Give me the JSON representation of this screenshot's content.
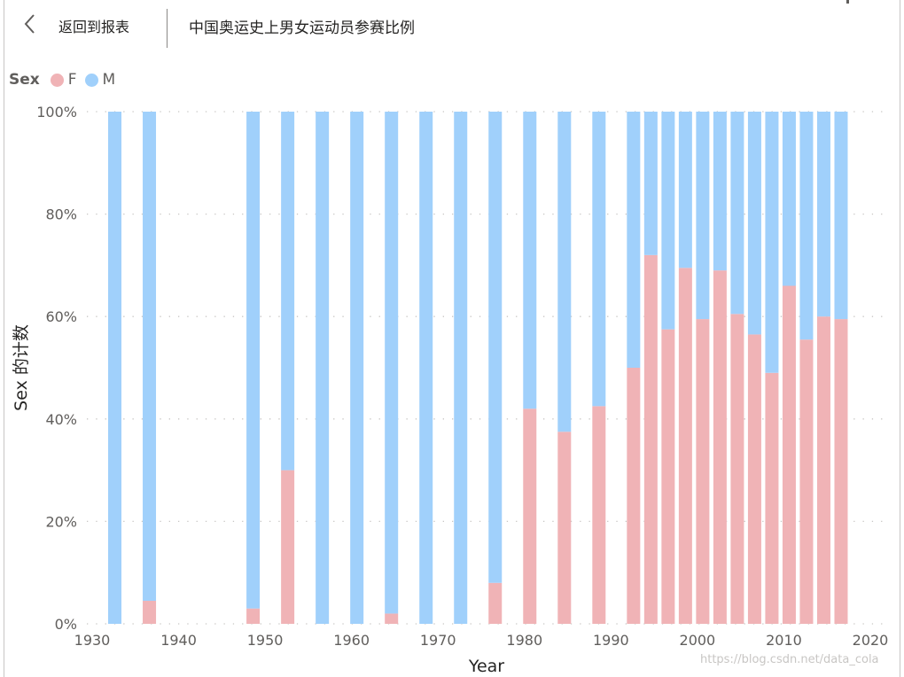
{
  "header": {
    "back_label": "返回到报表",
    "title": "中国奥运史上男女运动员参赛比例"
  },
  "legend": {
    "title": "Sex",
    "items": [
      {
        "label": "F",
        "color": "#f0b3b6"
      },
      {
        "label": "M",
        "color": "#a0d0fb"
      }
    ]
  },
  "watermark": "https://blog.csdn.net/data_cola",
  "chart_data": {
    "type": "bar",
    "stacked": true,
    "percent": true,
    "xlabel": "Year",
    "ylabel": "Sex 的计数",
    "xlim": [
      1930,
      2020
    ],
    "xticks": [
      1930,
      1940,
      1950,
      1960,
      1970,
      1980,
      1990,
      2000,
      2010,
      2020
    ],
    "ylim": [
      0,
      100
    ],
    "yticks": [
      "0%",
      "20%",
      "40%",
      "60%",
      "80%",
      "100%"
    ],
    "grid": true,
    "legend_position": "top-left",
    "categories": [
      1932,
      1936,
      1948,
      1952,
      1956,
      1960,
      1964,
      1968,
      1972,
      1976,
      1980,
      1984,
      1988,
      1992,
      1994,
      1996,
      1998,
      2000,
      2002,
      2004,
      2006,
      2008,
      2010,
      2012,
      2014,
      2016
    ],
    "series": [
      {
        "name": "F",
        "color": "#f0b3b6",
        "values": [
          0,
          4.5,
          3,
          30,
          0,
          0,
          2,
          0,
          0,
          8,
          42,
          37.5,
          42.5,
          50,
          72,
          57.5,
          69.5,
          59.5,
          69,
          60.5,
          56.5,
          49,
          66,
          55.5,
          60,
          59.5
        ]
      },
      {
        "name": "M",
        "color": "#a0d0fb",
        "values": [
          100,
          95.5,
          97,
          70,
          100,
          100,
          98,
          100,
          100,
          92,
          58,
          62.5,
          57.5,
          50,
          28,
          42.5,
          30.5,
          40.5,
          31,
          39.5,
          43.5,
          51,
          34,
          44.5,
          40,
          40.5
        ]
      }
    ]
  }
}
